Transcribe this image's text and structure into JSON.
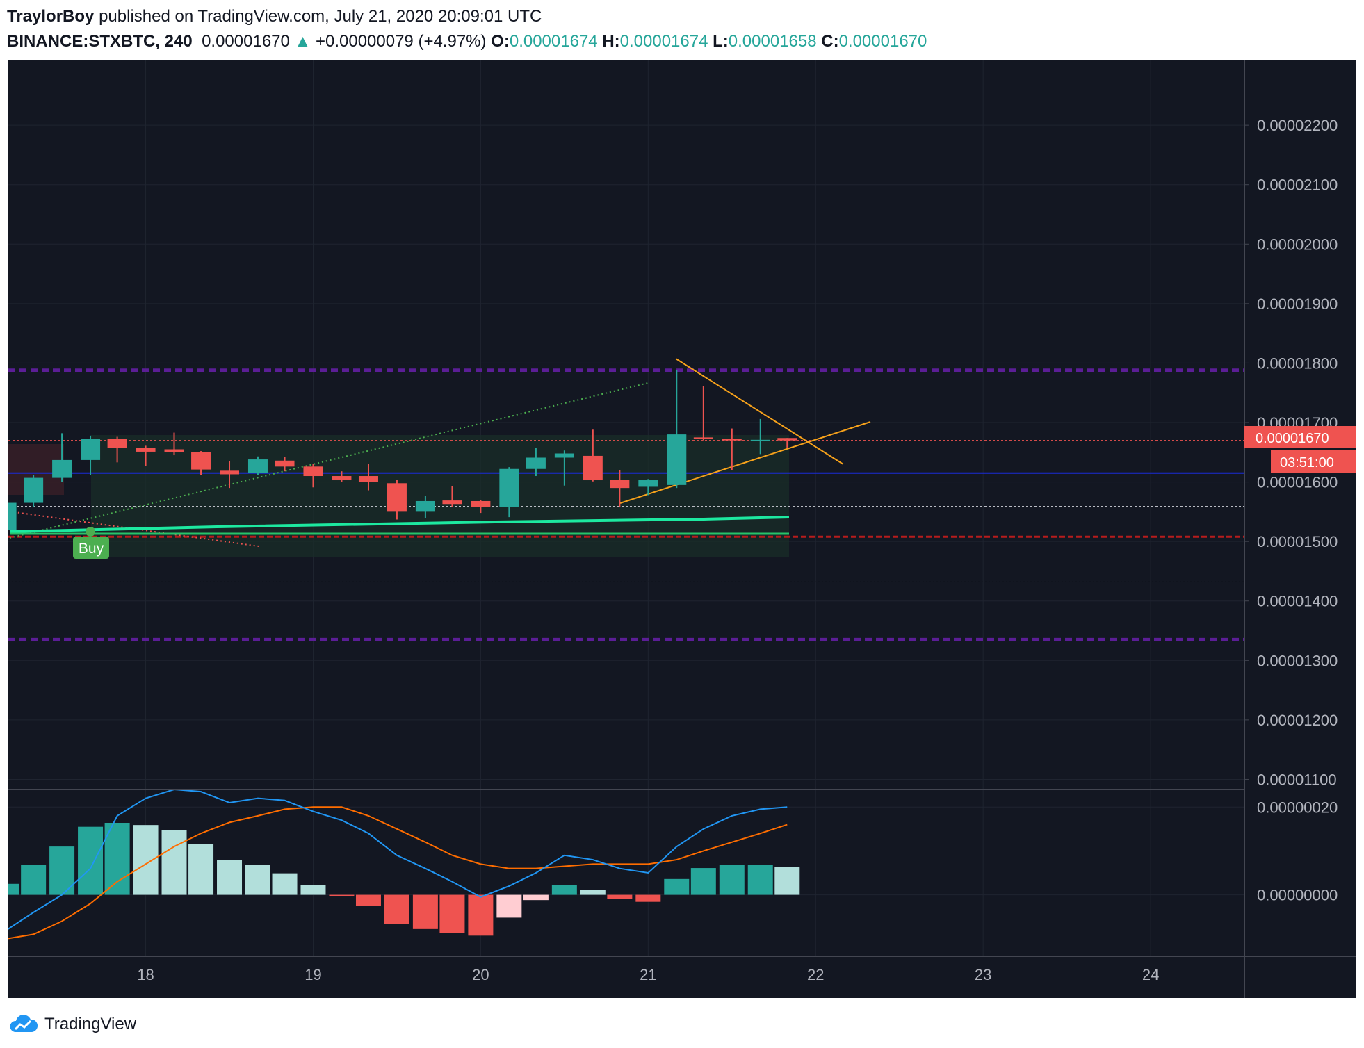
{
  "header": {
    "author": "TraylorBoy",
    "published_text": "published on TradingView.com, July 21, 2020 20:09:01 UTC",
    "symbol": "BINANCE:STXBTC, 240",
    "last": "0.00001670",
    "change": "+0.00000079 (+4.97%)",
    "o_label": "O:",
    "o_value": "0.00001674",
    "h_label": "H:",
    "h_value": "0.00001674",
    "l_label": "L:",
    "l_value": "0.00001658",
    "c_label": "C:",
    "c_value": "0.00001670"
  },
  "footer": {
    "brand": "TradingView"
  },
  "colors": {
    "background": "#131722",
    "grid": "#1f2430",
    "axis_text": "#b2b5be",
    "up": "#26a69a",
    "down": "#ef5350",
    "macd_line": "#2196f3",
    "signal_line": "#ff6d00",
    "hist_up_strong": "#26a69a",
    "hist_up_weak": "#b2dfdb",
    "hist_down_strong": "#ef5350",
    "hist_down_weak": "#ffcdd2",
    "purple": "#5b1e96",
    "triangle": "#f7a21b",
    "ma": "#1de9a0",
    "buy": "#4caf50",
    "price_tag": "#ef5350"
  },
  "chart_data": {
    "type": "candlestick",
    "symbol": "BINANCE:STXBTC",
    "interval": "240",
    "y_axis_ticks": [
      "0.00002200",
      "0.00002100",
      "0.00002000",
      "0.00001900",
      "0.00001800",
      "0.00001700",
      "0.00001600",
      "0.00001500",
      "0.00001400",
      "0.00001300",
      "0.00001200",
      "0.00001100"
    ],
    "ylim": [
      1.083e-05,
      2.31e-05
    ],
    "x_ticks": [
      {
        "label": "18",
        "day": 18
      },
      {
        "label": "19",
        "day": 19
      },
      {
        "label": "20",
        "day": 20
      },
      {
        "label": "21",
        "day": 21
      },
      {
        "label": "22",
        "day": 22
      },
      {
        "label": "23",
        "day": 23
      },
      {
        "label": "24",
        "day": 24
      }
    ],
    "xlim_days": [
      17.18,
      24.56
    ],
    "candles": [
      {
        "d": 17.17,
        "o": 1.52e-05,
        "h": 1.57e-05,
        "l": 1.51e-05,
        "c": 1.565e-05
      },
      {
        "d": 17.33,
        "o": 1.565e-05,
        "h": 1.612e-05,
        "l": 1.558e-05,
        "c": 1.607e-05
      },
      {
        "d": 17.5,
        "o": 1.607e-05,
        "h": 1.682e-05,
        "l": 1.6e-05,
        "c": 1.637e-05
      },
      {
        "d": 17.67,
        "o": 1.637e-05,
        "h": 1.678e-05,
        "l": 1.612e-05,
        "c": 1.673e-05
      },
      {
        "d": 17.83,
        "o": 1.673e-05,
        "h": 1.676e-05,
        "l": 1.633e-05,
        "c": 1.657e-05
      },
      {
        "d": 18.0,
        "o": 1.657e-05,
        "h": 1.661e-05,
        "l": 1.627e-05,
        "c": 1.651e-05
      },
      {
        "d": 18.17,
        "o": 1.655e-05,
        "h": 1.683e-05,
        "l": 1.645e-05,
        "c": 1.65e-05
      },
      {
        "d": 18.33,
        "o": 1.65e-05,
        "h": 1.652e-05,
        "l": 1.612e-05,
        "c": 1.621e-05
      },
      {
        "d": 18.5,
        "o": 1.619e-05,
        "h": 1.635e-05,
        "l": 1.59e-05,
        "c": 1.613e-05
      },
      {
        "d": 18.67,
        "o": 1.615e-05,
        "h": 1.643e-05,
        "l": 1.612e-05,
        "c": 1.638e-05
      },
      {
        "d": 18.83,
        "o": 1.636e-05,
        "h": 1.642e-05,
        "l": 1.618e-05,
        "c": 1.626e-05
      },
      {
        "d": 19.0,
        "o": 1.626e-05,
        "h": 1.631e-05,
        "l": 1.591e-05,
        "c": 1.61e-05
      },
      {
        "d": 19.17,
        "o": 1.61e-05,
        "h": 1.618e-05,
        "l": 1.6e-05,
        "c": 1.603e-05
      },
      {
        "d": 19.33,
        "o": 1.61e-05,
        "h": 1.631e-05,
        "l": 1.586e-05,
        "c": 1.6e-05
      },
      {
        "d": 19.5,
        "o": 1.598e-05,
        "h": 1.603e-05,
        "l": 1.537e-05,
        "c": 1.55e-05
      },
      {
        "d": 19.67,
        "o": 1.55e-05,
        "h": 1.577e-05,
        "l": 1.539e-05,
        "c": 1.568e-05
      },
      {
        "d": 19.83,
        "o": 1.569e-05,
        "h": 1.593e-05,
        "l": 1.558e-05,
        "c": 1.563e-05
      },
      {
        "d": 20.0,
        "o": 1.568e-05,
        "h": 1.57e-05,
        "l": 1.548e-05,
        "c": 1.558e-05
      },
      {
        "d": 20.17,
        "o": 1.558e-05,
        "h": 1.625e-05,
        "l": 1.541e-05,
        "c": 1.622e-05
      },
      {
        "d": 20.33,
        "o": 1.622e-05,
        "h": 1.657e-05,
        "l": 1.61e-05,
        "c": 1.641e-05
      },
      {
        "d": 20.5,
        "o": 1.641e-05,
        "h": 1.653e-05,
        "l": 1.594e-05,
        "c": 1.648e-05
      },
      {
        "d": 20.67,
        "o": 1.644e-05,
        "h": 1.688e-05,
        "l": 1.601e-05,
        "c": 1.603e-05
      },
      {
        "d": 20.83,
        "o": 1.604e-05,
        "h": 1.62e-05,
        "l": 1.558e-05,
        "c": 1.59e-05
      },
      {
        "d": 21.0,
        "o": 1.592e-05,
        "h": 1.605e-05,
        "l": 1.578e-05,
        "c": 1.603e-05
      },
      {
        "d": 21.17,
        "o": 1.595e-05,
        "h": 1.788e-05,
        "l": 1.59e-05,
        "c": 1.68e-05
      },
      {
        "d": 21.33,
        "o": 1.675e-05,
        "h": 1.762e-05,
        "l": 1.67e-05,
        "c": 1.673e-05
      },
      {
        "d": 21.5,
        "o": 1.673e-05,
        "h": 1.69e-05,
        "l": 1.62e-05,
        "c": 1.67e-05
      },
      {
        "d": 21.67,
        "o": 1.67e-05,
        "h": 1.706e-05,
        "l": 1.647e-05,
        "c": 1.671e-05
      },
      {
        "d": 21.83,
        "o": 1.674e-05,
        "h": 1.674e-05,
        "l": 1.658e-05,
        "c": 1.67e-05
      }
    ],
    "current_price": "0.00001670",
    "countdown": "03:51:00",
    "signal_label": "Buy",
    "horizontal_levels": [
      {
        "price": 1.788e-05,
        "style": "purple-dashed"
      },
      {
        "price": 1.335e-05,
        "style": "purple-dashed"
      },
      {
        "price": 1.615e-05,
        "style": "blue"
      },
      {
        "price": 1.559e-05,
        "style": "white-dotted"
      },
      {
        "price": 1.508e-05,
        "style": "red-dashed"
      },
      {
        "price": 1.432e-05,
        "style": "dark-dotted"
      }
    ],
    "macd": {
      "y_axis_ticks": [
        "0.00000020",
        "0.00000000"
      ],
      "ylim": [
        -1.4e-07,
        2.4e-07
      ],
      "histogram": [
        {
          "d": 17.17,
          "v": 2.5e-08
        },
        {
          "d": 17.33,
          "v": 6.8e-08
        },
        {
          "d": 17.5,
          "v": 1.1e-07
        },
        {
          "d": 17.67,
          "v": 1.55e-07
        },
        {
          "d": 17.83,
          "v": 1.64e-07
        },
        {
          "d": 18.0,
          "v": 1.59e-07
        },
        {
          "d": 18.17,
          "v": 1.48e-07
        },
        {
          "d": 18.33,
          "v": 1.15e-07
        },
        {
          "d": 18.5,
          "v": 8e-08
        },
        {
          "d": 18.67,
          "v": 6.8e-08
        },
        {
          "d": 18.83,
          "v": 4.9e-08
        },
        {
          "d": 19.0,
          "v": 2.2e-08
        },
        {
          "d": 19.17,
          "v": -3e-09
        },
        {
          "d": 19.33,
          "v": -2.5e-08
        },
        {
          "d": 19.5,
          "v": -6.7e-08
        },
        {
          "d": 19.67,
          "v": -7.8e-08
        },
        {
          "d": 19.83,
          "v": -8.7e-08
        },
        {
          "d": 20.0,
          "v": -9.3e-08
        },
        {
          "d": 20.17,
          "v": -5.2e-08
        },
        {
          "d": 20.33,
          "v": -1.2e-08
        },
        {
          "d": 20.5,
          "v": 2.3e-08
        },
        {
          "d": 20.67,
          "v": 1.2e-08
        },
        {
          "d": 20.83,
          "v": -1e-08
        },
        {
          "d": 21.0,
          "v": -1.6e-08
        },
        {
          "d": 21.17,
          "v": 3.6e-08
        },
        {
          "d": 21.33,
          "v": 6.1e-08
        },
        {
          "d": 21.5,
          "v": 6.8e-08
        },
        {
          "d": 21.67,
          "v": 6.9e-08
        },
        {
          "d": 21.83,
          "v": 6.4e-08
        }
      ],
      "macd_line": [
        {
          "d": 17.17,
          "v": -8e-08
        },
        {
          "d": 17.33,
          "v": -4e-08
        },
        {
          "d": 17.5,
          "v": 0.0
        },
        {
          "d": 17.67,
          "v": 6e-08
        },
        {
          "d": 17.83,
          "v": 1.8e-07
        },
        {
          "d": 18.0,
          "v": 2.2e-07
        },
        {
          "d": 18.17,
          "v": 2.4e-07
        },
        {
          "d": 18.33,
          "v": 2.35e-07
        },
        {
          "d": 18.5,
          "v": 2.1e-07
        },
        {
          "d": 18.67,
          "v": 2.2e-07
        },
        {
          "d": 18.83,
          "v": 2.15e-07
        },
        {
          "d": 19.0,
          "v": 1.9e-07
        },
        {
          "d": 19.17,
          "v": 1.7e-07
        },
        {
          "d": 19.33,
          "v": 1.4e-07
        },
        {
          "d": 19.5,
          "v": 9e-08
        },
        {
          "d": 19.67,
          "v": 6e-08
        },
        {
          "d": 19.83,
          "v": 3e-08
        },
        {
          "d": 20.0,
          "v": -5e-09
        },
        {
          "d": 20.17,
          "v": 2e-08
        },
        {
          "d": 20.33,
          "v": 5e-08
        },
        {
          "d": 20.5,
          "v": 9e-08
        },
        {
          "d": 20.67,
          "v": 8e-08
        },
        {
          "d": 20.83,
          "v": 6e-08
        },
        {
          "d": 21.0,
          "v": 5e-08
        },
        {
          "d": 21.17,
          "v": 1.1e-07
        },
        {
          "d": 21.33,
          "v": 1.5e-07
        },
        {
          "d": 21.5,
          "v": 1.8e-07
        },
        {
          "d": 21.67,
          "v": 1.95e-07
        },
        {
          "d": 21.83,
          "v": 2e-07
        }
      ],
      "signal_line": [
        {
          "d": 17.17,
          "v": -1e-07
        },
        {
          "d": 17.33,
          "v": -9e-08
        },
        {
          "d": 17.5,
          "v": -6e-08
        },
        {
          "d": 17.67,
          "v": -2e-08
        },
        {
          "d": 17.83,
          "v": 3e-08
        },
        {
          "d": 18.0,
          "v": 7e-08
        },
        {
          "d": 18.17,
          "v": 1.1e-07
        },
        {
          "d": 18.33,
          "v": 1.4e-07
        },
        {
          "d": 18.5,
          "v": 1.65e-07
        },
        {
          "d": 18.67,
          "v": 1.8e-07
        },
        {
          "d": 18.83,
          "v": 1.95e-07
        },
        {
          "d": 19.0,
          "v": 2e-07
        },
        {
          "d": 19.17,
          "v": 2e-07
        },
        {
          "d": 19.33,
          "v": 1.8e-07
        },
        {
          "d": 19.5,
          "v": 1.5e-07
        },
        {
          "d": 19.67,
          "v": 1.2e-07
        },
        {
          "d": 19.83,
          "v": 9e-08
        },
        {
          "d": 20.0,
          "v": 7e-08
        },
        {
          "d": 20.17,
          "v": 6e-08
        },
        {
          "d": 20.33,
          "v": 6e-08
        },
        {
          "d": 20.5,
          "v": 6.5e-08
        },
        {
          "d": 20.67,
          "v": 7e-08
        },
        {
          "d": 20.83,
          "v": 7e-08
        },
        {
          "d": 21.0,
          "v": 7e-08
        },
        {
          "d": 21.17,
          "v": 8e-08
        },
        {
          "d": 21.33,
          "v": 1e-07
        },
        {
          "d": 21.5,
          "v": 1.2e-07
        },
        {
          "d": 21.67,
          "v": 1.4e-07
        },
        {
          "d": 21.83,
          "v": 1.6e-07
        }
      ]
    }
  }
}
